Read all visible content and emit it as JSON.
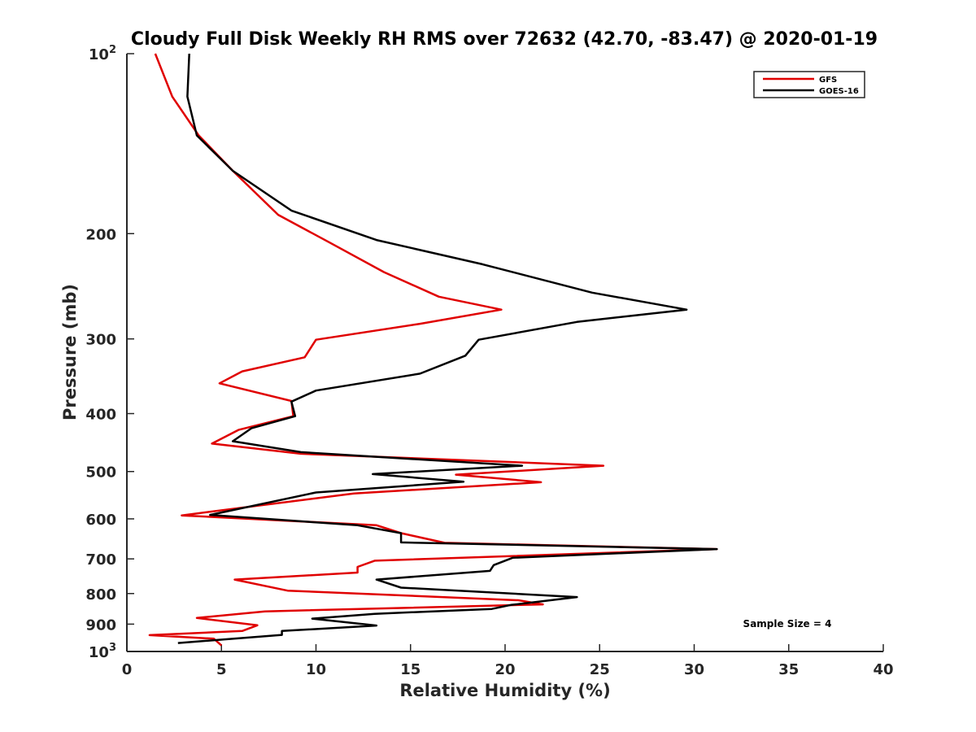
{
  "chart_data": {
    "type": "line",
    "title": "Cloudy Full Disk Weekly RH RMS over 72632 (42.70, -83.47) @ 2020-01-19",
    "xlabel": "Relative Humidity (%)",
    "ylabel": "Pressure (mb)",
    "xlim": [
      0,
      40
    ],
    "ylim": [
      100,
      1000
    ],
    "y_scale": "log",
    "y_reversed": true,
    "grid": false,
    "legend_position": "top-right",
    "x_ticks": [
      "0",
      "5",
      "10",
      "15",
      "20",
      "25",
      "30",
      "35",
      "40"
    ],
    "y_ticks": [
      {
        "value": 100,
        "base": "10",
        "exp": "2"
      },
      {
        "value": 200,
        "label": "200"
      },
      {
        "value": 300,
        "label": "300"
      },
      {
        "value": 400,
        "label": "400"
      },
      {
        "value": 500,
        "label": "500"
      },
      {
        "value": 600,
        "label": "600"
      },
      {
        "value": 700,
        "label": "700"
      },
      {
        "value": 800,
        "label": "800"
      },
      {
        "value": 900,
        "label": "900"
      },
      {
        "value": 1000,
        "base": "10",
        "exp": "3"
      }
    ],
    "annotation": "Sample Size = 4",
    "series": [
      {
        "name": "GFS",
        "color": "#e00000",
        "points": [
          [
            1.5,
            100
          ],
          [
            2.4,
            118
          ],
          [
            3.8,
            137
          ],
          [
            5.6,
            157
          ],
          [
            8.0,
            186
          ],
          [
            10.6,
            206
          ],
          [
            13.6,
            232
          ],
          [
            16.5,
            255
          ],
          [
            19.8,
            268
          ],
          [
            15.5,
            283
          ],
          [
            10.0,
            301
          ],
          [
            9.4,
            322
          ],
          [
            6.1,
            340
          ],
          [
            4.9,
            356
          ],
          [
            8.7,
            381
          ],
          [
            8.8,
            404
          ],
          [
            5.9,
            426
          ],
          [
            4.5,
            449
          ],
          [
            9.2,
            467
          ],
          [
            25.2,
            489
          ],
          [
            17.4,
            506
          ],
          [
            21.9,
            521
          ],
          [
            12.0,
            544
          ],
          [
            2.9,
            592
          ],
          [
            13.2,
            615
          ],
          [
            14.5,
            634
          ],
          [
            16.8,
            658
          ],
          [
            31.2,
            674
          ],
          [
            13.1,
            705
          ],
          [
            12.2,
            722
          ],
          [
            12.2,
            738
          ],
          [
            5.7,
            758
          ],
          [
            8.5,
            791
          ],
          [
            20.7,
            821
          ],
          [
            22.0,
            834
          ],
          [
            7.3,
            857
          ],
          [
            3.7,
            879
          ],
          [
            6.9,
            904
          ],
          [
            6.1,
            924
          ],
          [
            1.2,
            939
          ],
          [
            4.6,
            952
          ],
          [
            5.0,
            977
          ]
        ]
      },
      {
        "name": "GOES-16",
        "color": "#000000",
        "points": [
          [
            3.3,
            100
          ],
          [
            3.2,
            118
          ],
          [
            3.7,
            137
          ],
          [
            5.6,
            157
          ],
          [
            8.7,
            183
          ],
          [
            13.2,
            205
          ],
          [
            18.8,
            225
          ],
          [
            24.6,
            251
          ],
          [
            29.6,
            268
          ],
          [
            23.8,
            281
          ],
          [
            18.6,
            301
          ],
          [
            17.9,
            320
          ],
          [
            15.5,
            343
          ],
          [
            10.0,
            366
          ],
          [
            8.7,
            382
          ],
          [
            8.9,
            404
          ],
          [
            6.6,
            423
          ],
          [
            5.6,
            445
          ],
          [
            9.2,
            464
          ],
          [
            20.9,
            489
          ],
          [
            13.0,
            505
          ],
          [
            17.8,
            520
          ],
          [
            10.0,
            542
          ],
          [
            4.4,
            591
          ],
          [
            12.2,
            615
          ],
          [
            14.5,
            634
          ],
          [
            14.5,
            657
          ],
          [
            31.2,
            674
          ],
          [
            20.4,
            697
          ],
          [
            19.4,
            717
          ],
          [
            19.2,
            733
          ],
          [
            13.2,
            758
          ],
          [
            14.5,
            782
          ],
          [
            23.8,
            811
          ],
          [
            20.3,
            836
          ],
          [
            19.3,
            849
          ],
          [
            13.1,
            865
          ],
          [
            9.8,
            881
          ],
          [
            13.2,
            905
          ],
          [
            8.2,
            924
          ],
          [
            8.2,
            938
          ],
          [
            2.7,
            968
          ]
        ]
      }
    ]
  }
}
